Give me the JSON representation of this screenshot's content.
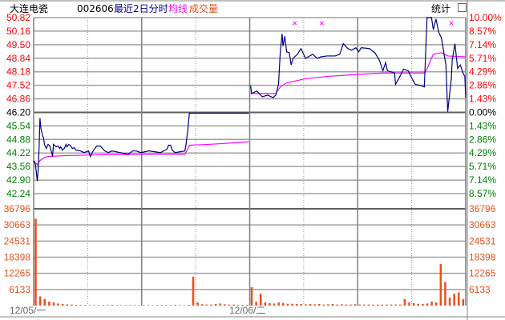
{
  "header": {
    "stock_name": "大连电瓷",
    "stock_code": "002606",
    "period_label": "最近2日分时",
    "avg_label": "均线",
    "volume_label": "成交量",
    "stats_button": "统计",
    "restore_icon": "window-restore-icon"
  },
  "colors": {
    "price_line": "#000080",
    "avg_line": "#ff00ff",
    "volume": "#e8501a",
    "up": "#ff0000",
    "down": "#008000",
    "flat": "#000000"
  },
  "chart_data": {
    "type": "line",
    "title": "",
    "reference_price": 46.2,
    "ylim": [
      42.24,
      50.82
    ],
    "price_ticks": [
      "50.82",
      "50.16",
      "49.50",
      "48.84",
      "48.18",
      "47.52",
      "46.86",
      "46.20",
      "45.54",
      "44.88",
      "44.22",
      "43.56",
      "42.90",
      "42.24"
    ],
    "percent_ticks": [
      "10.00%",
      "8.57%",
      "7.14%",
      "5.71%",
      "4.29%",
      "2.86%",
      "1.43%",
      "0.00%",
      "1.43%",
      "2.86%",
      "4.29%",
      "5.71%",
      "7.14%",
      "8.57%"
    ],
    "volume_ticks": [
      "36796",
      "30663",
      "24531",
      "18398",
      "12265",
      "6133"
    ],
    "volume_max": 36796,
    "x_labels": [
      "12/05/一",
      "12/06/二"
    ],
    "minutes_total": 480,
    "price_series": [
      [
        0,
        43.85
      ],
      [
        2,
        43.65
      ],
      [
        3,
        43.25
      ],
      [
        4,
        42.85
      ],
      [
        5,
        43.45
      ],
      [
        6,
        44.44
      ],
      [
        7,
        45.92
      ],
      [
        8,
        45.44
      ],
      [
        9,
        45.24
      ],
      [
        10,
        45.04
      ],
      [
        11,
        44.96
      ],
      [
        12,
        44.64
      ],
      [
        14,
        44.44
      ],
      [
        16,
        44.64
      ],
      [
        18,
        44.56
      ],
      [
        20,
        44.24
      ],
      [
        21,
        44.05
      ],
      [
        22,
        44.64
      ],
      [
        25,
        44.52
      ],
      [
        27,
        44.56
      ],
      [
        29,
        44.44
      ],
      [
        30,
        44.52
      ],
      [
        32,
        44.36
      ],
      [
        34,
        44.44
      ],
      [
        36,
        44.64
      ],
      [
        37,
        44.52
      ],
      [
        39,
        44.64
      ],
      [
        41,
        44.56
      ],
      [
        43,
        44.44
      ],
      [
        45,
        44.48
      ],
      [
        47,
        44.36
      ],
      [
        52,
        44.32
      ],
      [
        56,
        44.24
      ],
      [
        61,
        44.32
      ],
      [
        63,
        44.05
      ],
      [
        66,
        44.32
      ],
      [
        70,
        44.56
      ],
      [
        74,
        44.56
      ],
      [
        79,
        44.32
      ],
      [
        83,
        44.24
      ],
      [
        87,
        44.32
      ],
      [
        96,
        44.24
      ],
      [
        105,
        44.16
      ],
      [
        110,
        44.32
      ],
      [
        114,
        44.32
      ],
      [
        119,
        44.24
      ],
      [
        128,
        44.32
      ],
      [
        141,
        44.24
      ],
      [
        148,
        44.4
      ],
      [
        150,
        44.6
      ],
      [
        152,
        44.6
      ],
      [
        154,
        44.36
      ],
      [
        157,
        44.24
      ],
      [
        168,
        44.32
      ],
      [
        169,
        44.56
      ],
      [
        171,
        45.24
      ],
      [
        173,
        46.16
      ],
      [
        239,
        46.16
      ],
      [
        241,
        47.52
      ],
      [
        242,
        47.12
      ],
      [
        248,
        47.24
      ],
      [
        254,
        46.96
      ],
      [
        260,
        47.04
      ],
      [
        266,
        46.92
      ],
      [
        269,
        47.04
      ],
      [
        272,
        47.56
      ],
      [
        274,
        49.15
      ],
      [
        276,
        50.03
      ],
      [
        277,
        49.43
      ],
      [
        279,
        49.91
      ],
      [
        281,
        49.15
      ],
      [
        284,
        49.11
      ],
      [
        286,
        48.51
      ],
      [
        288,
        48.83
      ],
      [
        293,
        49.03
      ],
      [
        297,
        49.31
      ],
      [
        302,
        48.83
      ],
      [
        310,
        49.03
      ],
      [
        315,
        48.83
      ],
      [
        319,
        48.91
      ],
      [
        326,
        48.95
      ],
      [
        335,
        48.95
      ],
      [
        340,
        49.03
      ],
      [
        344,
        49.55
      ],
      [
        349,
        49.31
      ],
      [
        353,
        49.23
      ],
      [
        358,
        49.35
      ],
      [
        361,
        49.15
      ],
      [
        364,
        49.35
      ],
      [
        373,
        49.31
      ],
      [
        379,
        49.11
      ],
      [
        384,
        48.75
      ],
      [
        388,
        48.23
      ],
      [
        391,
        48.63
      ],
      [
        393,
        48.23
      ],
      [
        401,
        48.12
      ],
      [
        402,
        47.56
      ],
      [
        407,
        47.96
      ],
      [
        411,
        48.31
      ],
      [
        416,
        48.23
      ],
      [
        419,
        47.96
      ],
      [
        424,
        47.56
      ],
      [
        429,
        47.52
      ],
      [
        434,
        47.44
      ],
      [
        437,
        50.82
      ],
      [
        442,
        50.82
      ],
      [
        444,
        50.23
      ],
      [
        447,
        50.75
      ],
      [
        450,
        50.11
      ],
      [
        453,
        49.83
      ],
      [
        458,
        48.51
      ],
      [
        460,
        46.24
      ],
      [
        464,
        47.84
      ],
      [
        465,
        48.75
      ],
      [
        468,
        49.55
      ],
      [
        471,
        48.35
      ],
      [
        474,
        48.51
      ],
      [
        477,
        48.12
      ],
      [
        479,
        47.96
      ],
      [
        480,
        46.92
      ]
    ],
    "avg_series": [
      [
        0,
        43.85
      ],
      [
        4,
        43.65
      ],
      [
        7,
        43.85
      ],
      [
        12,
        44.01
      ],
      [
        16,
        44.05
      ],
      [
        34,
        44.09
      ],
      [
        70,
        44.13
      ],
      [
        141,
        44.16
      ],
      [
        168,
        44.16
      ],
      [
        171,
        44.4
      ],
      [
        173,
        44.6
      ],
      [
        195,
        44.64
      ],
      [
        239,
        44.76
      ],
      [
        241,
        47.12
      ],
      [
        269,
        47.12
      ],
      [
        274,
        47.44
      ],
      [
        281,
        47.64
      ],
      [
        302,
        47.84
      ],
      [
        328,
        47.96
      ],
      [
        358,
        48.04
      ],
      [
        388,
        48.12
      ],
      [
        434,
        48.12
      ],
      [
        437,
        48.31
      ],
      [
        441,
        48.75
      ],
      [
        444,
        49.03
      ],
      [
        453,
        49.11
      ],
      [
        460,
        48.95
      ],
      [
        480,
        48.91
      ]
    ],
    "volume_interval_minutes": 5,
    "volumes": [
      33000,
      3500,
      2500,
      1500,
      1200,
      800,
      600,
      500,
      400,
      300,
      300,
      250,
      200,
      200,
      200,
      200,
      250,
      300,
      200,
      200,
      200,
      200,
      200,
      200,
      200,
      200,
      200,
      200,
      250,
      200,
      200,
      300,
      200,
      200,
      300,
      11000,
      1200,
      500,
      400,
      400,
      600,
      800,
      500,
      400,
      400,
      300,
      300,
      300,
      7000,
      1500,
      4500,
      1200,
      900,
      800,
      1200,
      1000,
      700,
      700,
      600,
      600,
      500,
      600,
      500,
      600,
      400,
      500,
      600,
      400,
      500,
      400,
      400,
      500,
      400,
      400,
      400,
      400,
      400,
      400,
      400,
      400,
      400,
      400,
      2500,
      1200,
      900,
      700,
      600,
      800,
      1500,
      1200,
      15800,
      9000,
      3000,
      4500,
      5000,
      2500
    ],
    "markers": [
      [
        290,
        "×"
      ],
      [
        320,
        "×"
      ],
      [
        464,
        "×"
      ]
    ]
  }
}
